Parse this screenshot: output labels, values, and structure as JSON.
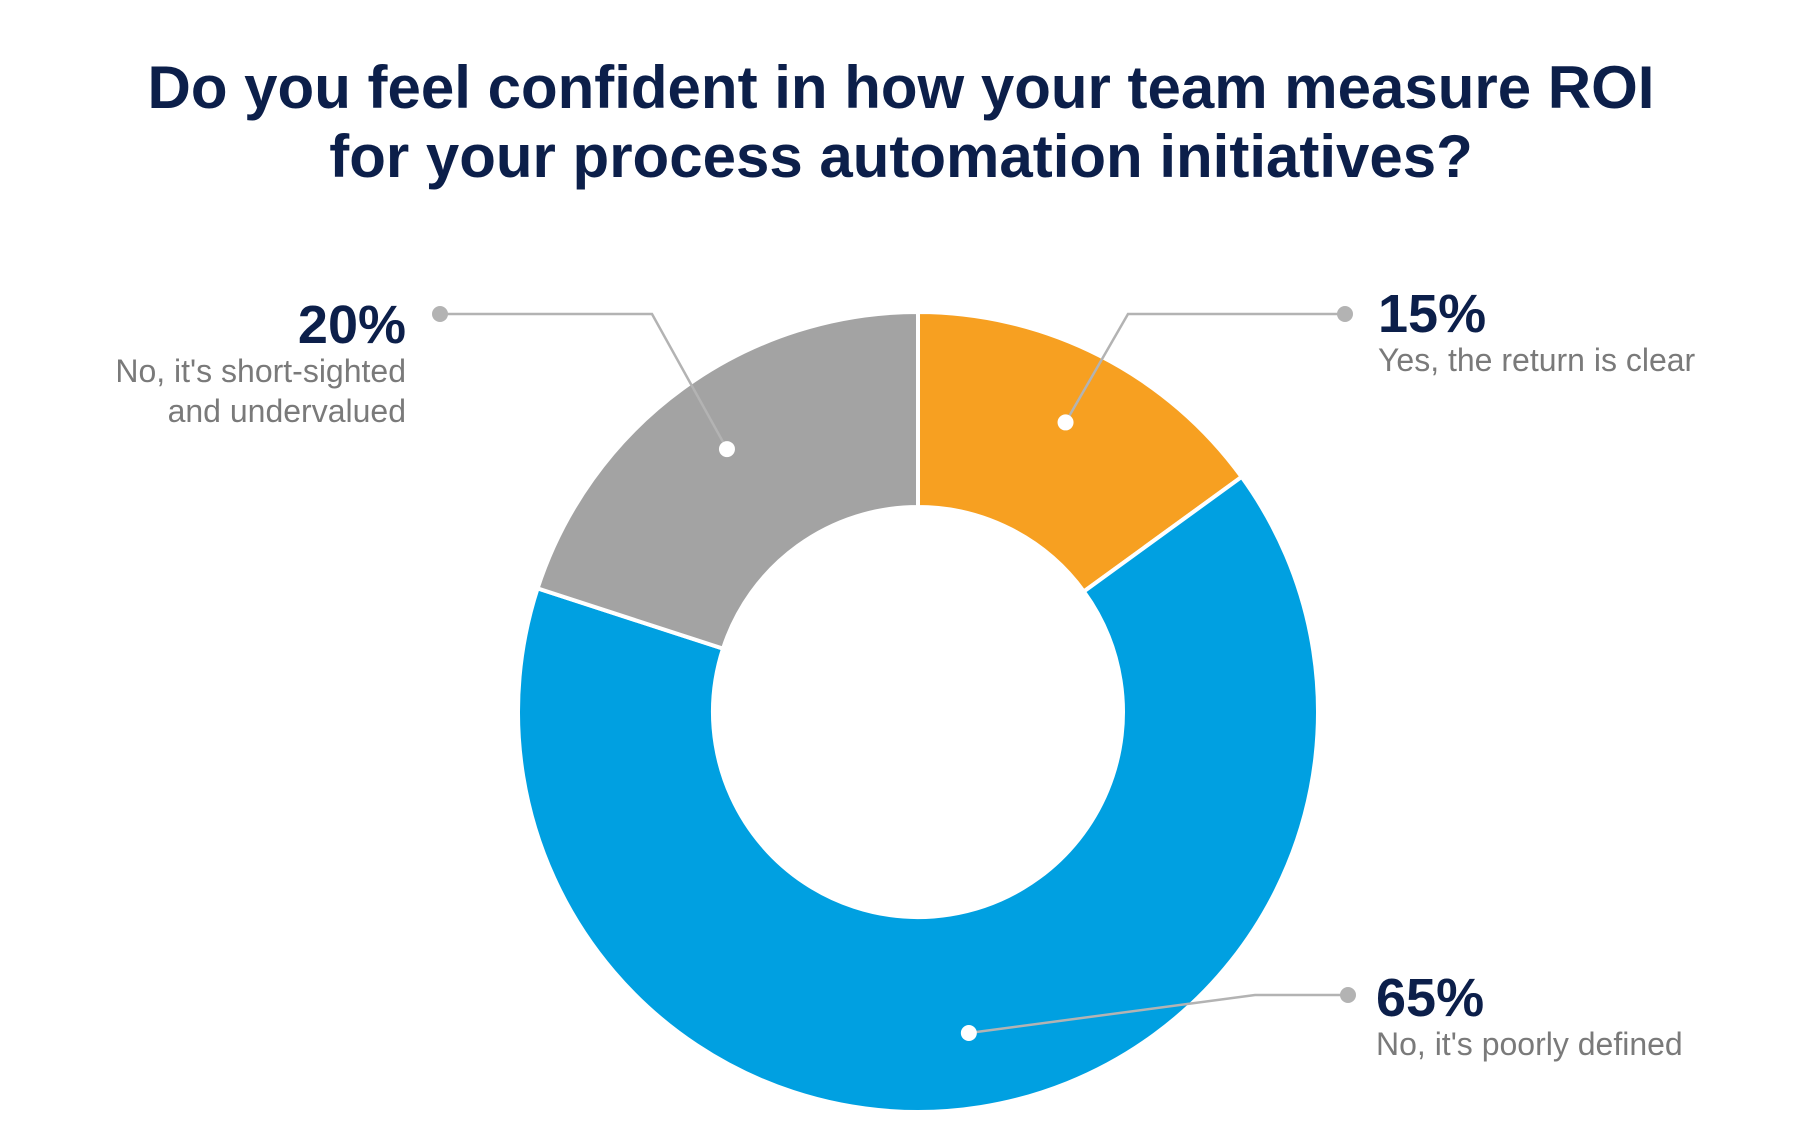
{
  "chart_data": {
    "type": "pie",
    "title_lines": [
      "Do you feel confident in how your team measure ROI",
      "for your process automation initiatives?"
    ],
    "slices": [
      {
        "value": 15,
        "value_label": "15%",
        "label_lines": [
          "Yes, the return is clear"
        ],
        "color": "#f7a021"
      },
      {
        "value": 65,
        "value_label": "65%",
        "label_lines": [
          "No, it's poorly defined"
        ],
        "color": "#00a0e1"
      },
      {
        "value": 20,
        "value_label": "20%",
        "label_lines": [
          "No, it's short-sighted",
          "and undervalued"
        ],
        "color": "#a3a3a3"
      }
    ],
    "donut": true
  }
}
